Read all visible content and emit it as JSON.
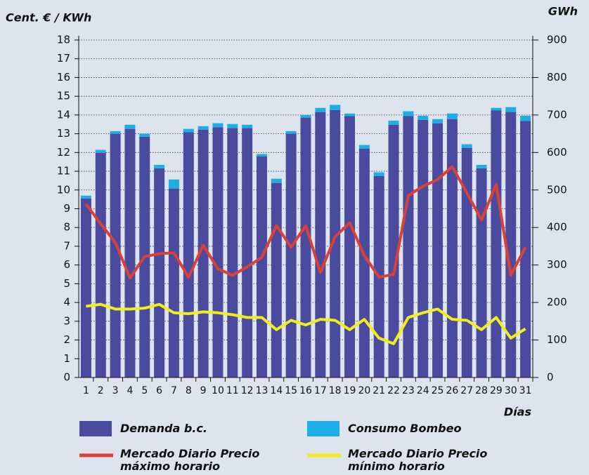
{
  "chart_data": {
    "type": "bar",
    "ylabel": "Cent. € / KWh",
    "y2label": "GWh",
    "xlabel": "Días",
    "categories": [
      "1",
      "2",
      "3",
      "4",
      "5",
      "6",
      "7",
      "8",
      "9",
      "10",
      "11",
      "12",
      "13",
      "14",
      "15",
      "16",
      "17",
      "18",
      "19",
      "20",
      "21",
      "22",
      "23",
      "24",
      "25",
      "26",
      "27",
      "28",
      "29",
      "30",
      "31"
    ],
    "ylim": [
      0,
      18
    ],
    "yticks": [
      0,
      1,
      2,
      3,
      4,
      5,
      6,
      7,
      8,
      9,
      10,
      11,
      12,
      13,
      14,
      15,
      16,
      17,
      18
    ],
    "y2lim": [
      0,
      900
    ],
    "y2ticks": [
      0,
      100,
      200,
      300,
      400,
      500,
      600,
      700,
      800,
      900
    ],
    "grid": true,
    "series": [
      {
        "name": "Demanda b.c.",
        "type": "bar",
        "axis": "y2",
        "stacked": true,
        "color": "#4a4a9e",
        "values": [
          477,
          599,
          650,
          663,
          642,
          558,
          504,
          654,
          661,
          667,
          665,
          665,
          590,
          519,
          650,
          693,
          708,
          713,
          697,
          610,
          537,
          674,
          697,
          687,
          678,
          689,
          612,
          558,
          712,
          708,
          684
        ]
      },
      {
        "name": "Consumo Bombeo",
        "type": "bar",
        "axis": "y2",
        "stacked": true,
        "color": "#1eaee6",
        "values": [
          8,
          8,
          7,
          11,
          8,
          9,
          24,
          9,
          9,
          11,
          11,
          9,
          6,
          11,
          7,
          7,
          11,
          14,
          7,
          10,
          10,
          11,
          13,
          11,
          11,
          15,
          10,
          9,
          7,
          13,
          14
        ]
      },
      {
        "name": "Mercado Diario Precio máximo horario",
        "type": "line",
        "color": "#d9403a",
        "values": [
          9.25,
          8.2,
          7.2,
          5.3,
          6.45,
          6.6,
          6.65,
          5.35,
          7.05,
          5.8,
          5.45,
          5.9,
          6.4,
          8.1,
          6.95,
          8.1,
          5.6,
          7.5,
          8.25,
          6.5,
          5.35,
          5.5,
          9.7,
          10.2,
          10.55,
          11.25,
          9.85,
          8.4,
          10.3,
          5.45,
          6.95
        ]
      },
      {
        "name": "Mercado Diario Precio mínimo horario",
        "type": "line",
        "color": "#f2ee1a",
        "values": [
          3.8,
          3.9,
          3.65,
          3.65,
          3.7,
          3.9,
          3.45,
          3.4,
          3.5,
          3.45,
          3.35,
          3.2,
          3.2,
          2.55,
          3.05,
          2.8,
          3.1,
          3.05,
          2.55,
          3.1,
          2.1,
          1.8,
          3.2,
          3.45,
          3.65,
          3.1,
          3.05,
          2.55,
          3.2,
          2.1,
          2.6
        ]
      }
    ]
  }
}
